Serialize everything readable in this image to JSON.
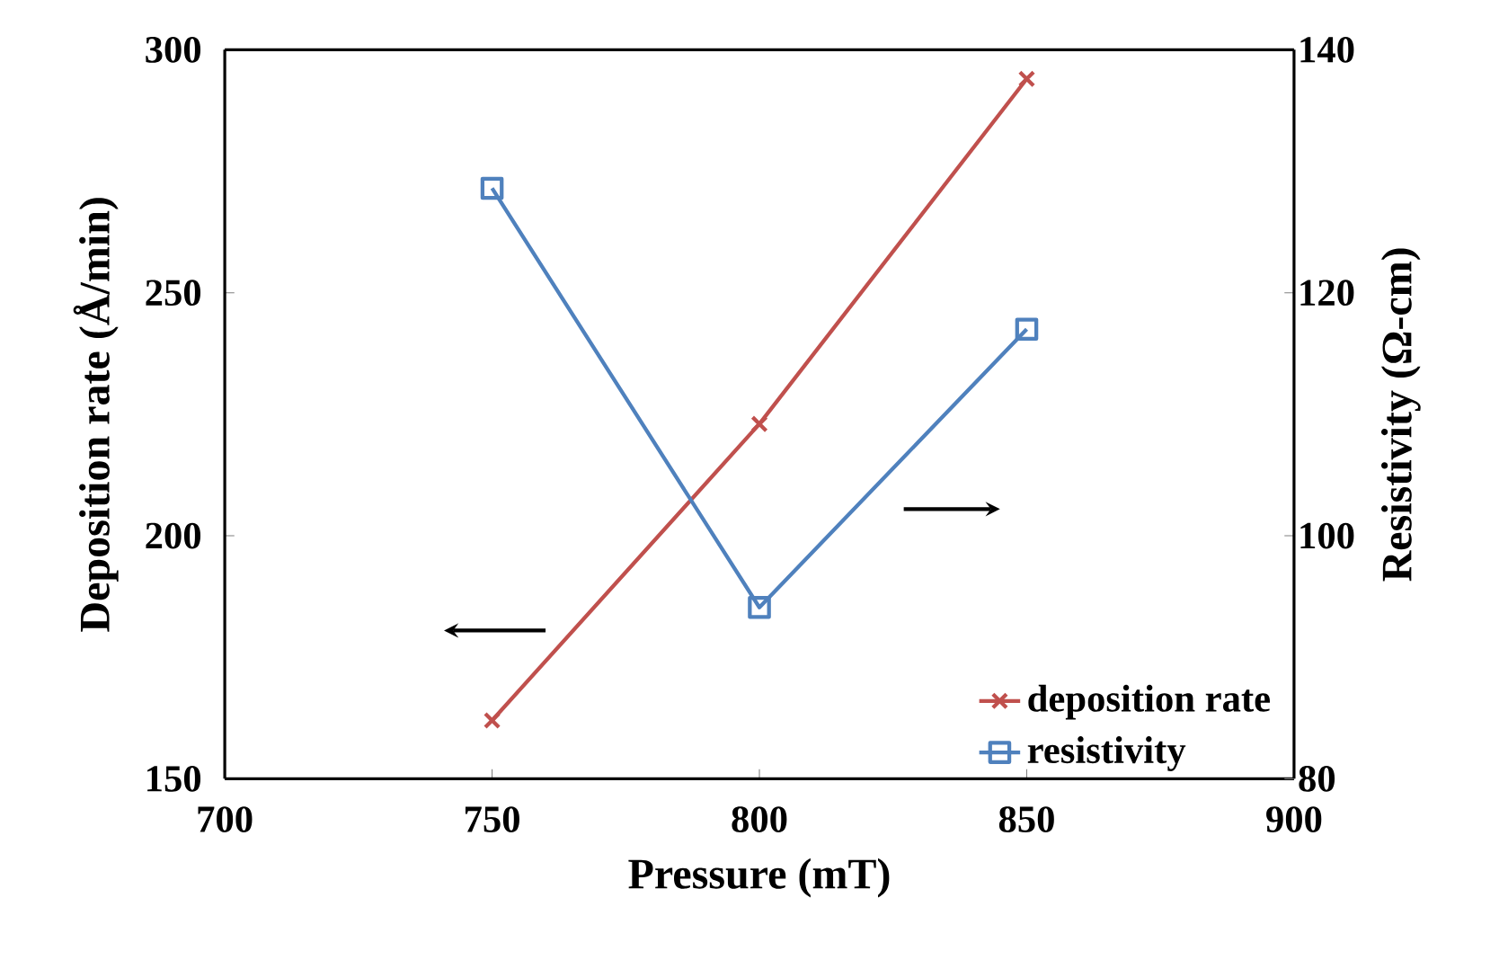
{
  "chart_data": {
    "type": "line",
    "xlabel": "Pressure (mT)",
    "ylabel": "Deposition rate (Å/min)",
    "y2label": "Resistivity (Ω-cm)",
    "x": [
      750,
      800,
      850
    ],
    "series": [
      {
        "name": "deposition rate",
        "color": "#c0504d",
        "values": [
          162,
          223,
          294
        ],
        "marker": "cross"
      },
      {
        "name": "resistivity",
        "color": "#4f81bd",
        "values": [
          128.6,
          94.1,
          117.0
        ],
        "marker": "square",
        "axis": "y2"
      }
    ],
    "xlim": [
      700,
      900
    ],
    "xticks": [
      700,
      750,
      800,
      850,
      900
    ],
    "ylim": [
      150,
      300
    ],
    "yticks": [
      150,
      200,
      250,
      300
    ],
    "y2lim": [
      80,
      140
    ],
    "y2ticks": [
      80,
      100,
      120,
      140
    ],
    "legend": "bottom right",
    "line_style": "solid"
  }
}
